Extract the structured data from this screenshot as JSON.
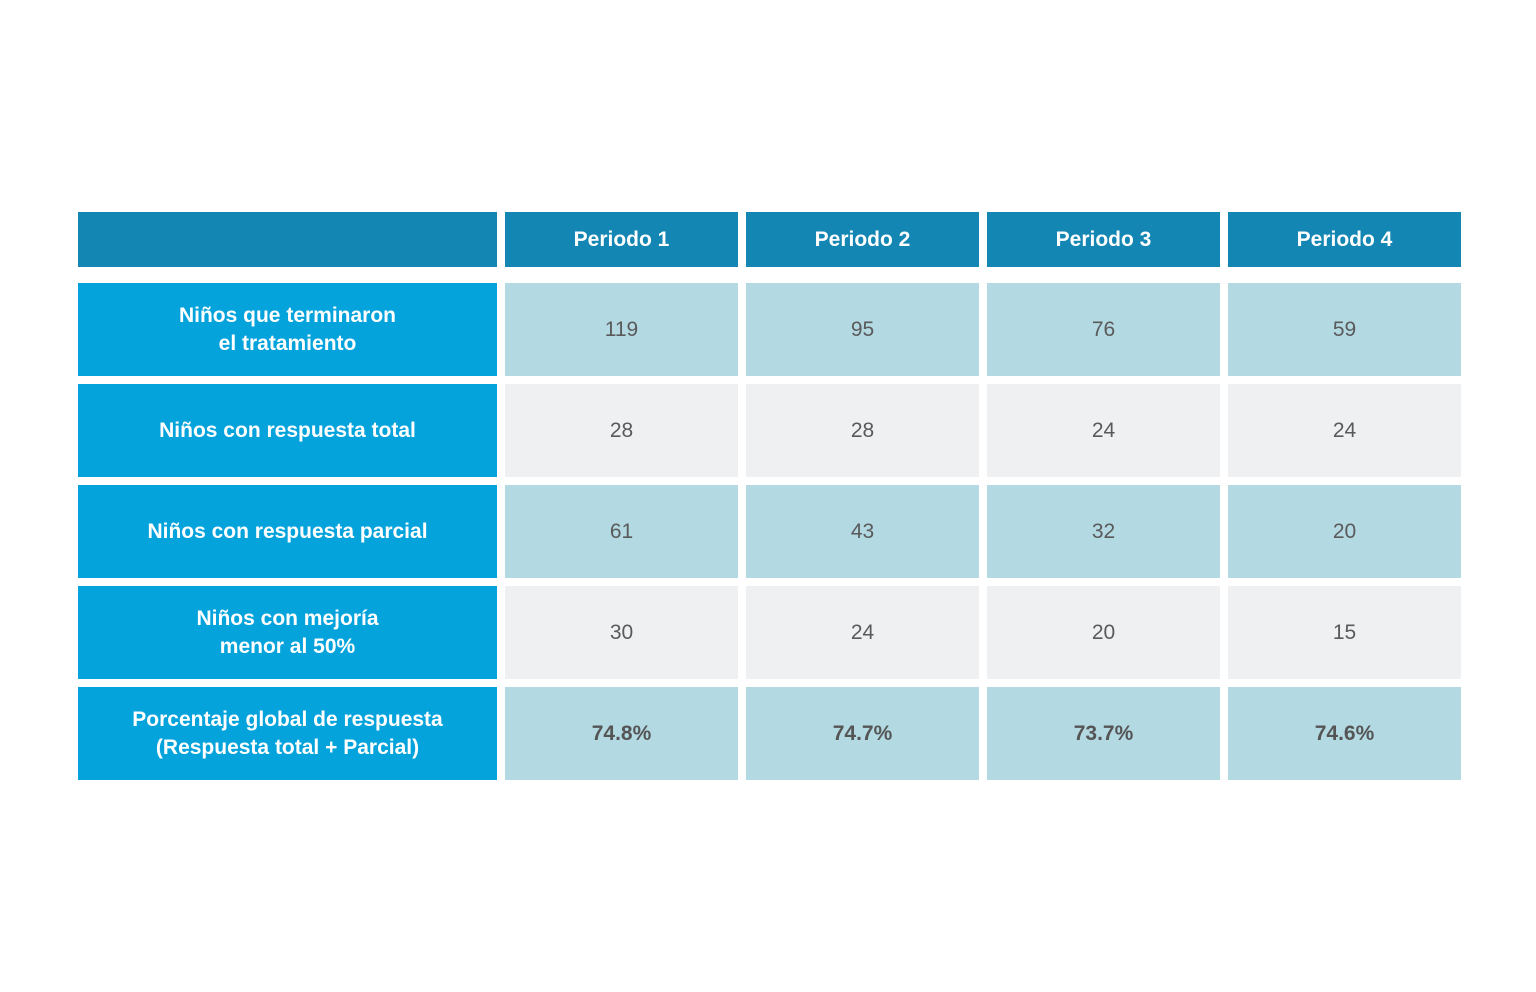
{
  "chart_data": {
    "type": "table",
    "columns": [
      "",
      "Periodo 1",
      "Periodo 2",
      "Periodo 3",
      "Periodo 4"
    ],
    "rows": [
      {
        "label_lines": [
          "Niños que terminaron",
          "el tratamiento"
        ],
        "values": [
          "119",
          "95",
          "76",
          "59"
        ]
      },
      {
        "label_lines": [
          "Niños con respuesta total"
        ],
        "values": [
          "28",
          "28",
          "24",
          "24"
        ]
      },
      {
        "label_lines": [
          "Niños con respuesta parcial"
        ],
        "values": [
          "61",
          "43",
          "32",
          "20"
        ]
      },
      {
        "label_lines": [
          "Niños con mejoría",
          "menor al 50%"
        ],
        "values": [
          "30",
          "24",
          "20",
          "15"
        ]
      },
      {
        "label_lines": [
          "Porcentaje global de respuesta",
          "(Respuesta total + Parcial)"
        ],
        "values": [
          "74.8%",
          "74.7%",
          "73.7%",
          "74.6%"
        ]
      }
    ],
    "colors": {
      "header_bg": "#1386b3",
      "label_bg": "#05a3dc",
      "row_blue_bg": "#b3d9e3",
      "row_gray_bg": "#eff0f2"
    }
  }
}
